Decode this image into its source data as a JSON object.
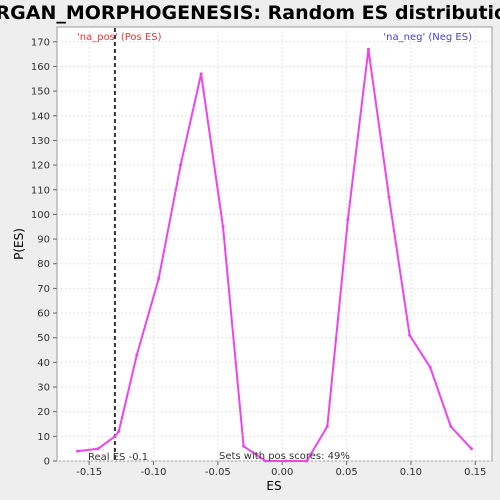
{
  "chart_data": {
    "type": "line",
    "title": "ORGAN_MORPHOGENESIS: Random ES distribution",
    "xlabel": "ES",
    "ylabel": "P(ES)",
    "xlim": [
      -0.175,
      0.163
    ],
    "ylim": [
      0,
      176
    ],
    "x_ticks": [
      -0.15,
      -0.1,
      -0.05,
      0.0,
      0.05,
      0.1,
      0.15
    ],
    "x_tick_labels": [
      "-0.15",
      "-0.10",
      "-0.05",
      "0.00",
      "0.05",
      "0.10",
      "0.15"
    ],
    "y_ticks": [
      0,
      10,
      20,
      30,
      40,
      50,
      60,
      70,
      80,
      90,
      100,
      110,
      120,
      130,
      140,
      150,
      160,
      170
    ],
    "grid": true,
    "series": [
      {
        "color": "#ee44ee",
        "x": [
          -0.159,
          -0.143,
          -0.13,
          -0.127,
          -0.113,
          -0.096,
          -0.079,
          -0.063,
          -0.046,
          -0.03,
          -0.013,
          0.003,
          0.019,
          0.035,
          0.051,
          0.067,
          0.083,
          0.099,
          0.115,
          0.131,
          0.147
        ],
        "y": [
          4,
          5,
          10,
          12,
          43,
          74,
          120,
          157,
          95,
          6,
          0,
          0,
          0,
          14,
          98,
          167,
          107,
          51,
          38,
          14,
          5
        ]
      }
    ],
    "real_es": {
      "x": -0.13,
      "label": "Real ES -0.1",
      "color": "#333333"
    },
    "corner_labels": {
      "pos": {
        "text": "'na_pos' (Pos ES)",
        "color": "#ee3333"
      },
      "neg": {
        "text": "'na_neg' (Neg ES)",
        "color": "#4444cc"
      }
    },
    "annotation": "Sets with pos scores: 49%"
  }
}
